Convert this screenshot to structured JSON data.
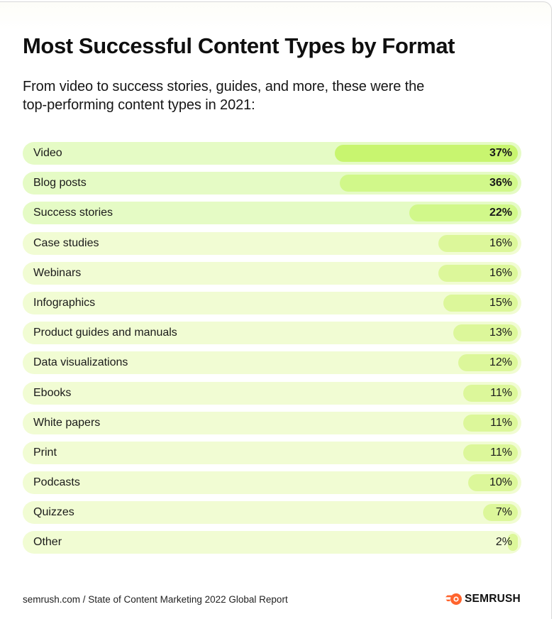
{
  "header": {
    "title": "Most Successful Content Types by Format",
    "subtitle": "From video to success stories, guides, and more, these were the top-performing content types in 2021:"
  },
  "footer": {
    "source": "semrush.com / State of Content Marketing 2022 Global Report",
    "logo_text": "SEMRUSH",
    "logo_icon": "semrush-fire-icon",
    "logo_color": "#ff642d"
  },
  "colors": {
    "track_top": "#e5fbc5",
    "track": "#f1fcd3",
    "bar_first": "#c8f56f",
    "bar_top": "#d1f88a",
    "bar": "#dcf79a"
  },
  "chart_data": {
    "type": "bar",
    "orientation": "horizontal",
    "title": "Most Successful Content Types by Format",
    "subtitle": "From video to success stories, guides, and more, these were the top-performing content types in 2021:",
    "xlabel": "",
    "ylabel": "",
    "unit": "%",
    "grid": false,
    "legend": null,
    "categories": [
      "Video",
      "Blog posts",
      "Success stories",
      "Case studies",
      "Webinars",
      "Infographics",
      "Product guides and manuals",
      "Data visualizations",
      "Ebooks",
      "White papers",
      "Print",
      "Podcasts",
      "Quizzes",
      "Other"
    ],
    "values": [
      37,
      36,
      22,
      16,
      16,
      15,
      13,
      12,
      11,
      11,
      11,
      10,
      7,
      2
    ],
    "labels": [
      "37%",
      "36%",
      "22%",
      "16%",
      "16%",
      "15%",
      "13%",
      "12%",
      "11%",
      "11%",
      "11%",
      "10%",
      "7%",
      "2%"
    ],
    "highlighted_top": 3,
    "xlim": [
      0,
      100
    ],
    "source": "semrush.com / State of Content Marketing 2022 Global Report"
  }
}
